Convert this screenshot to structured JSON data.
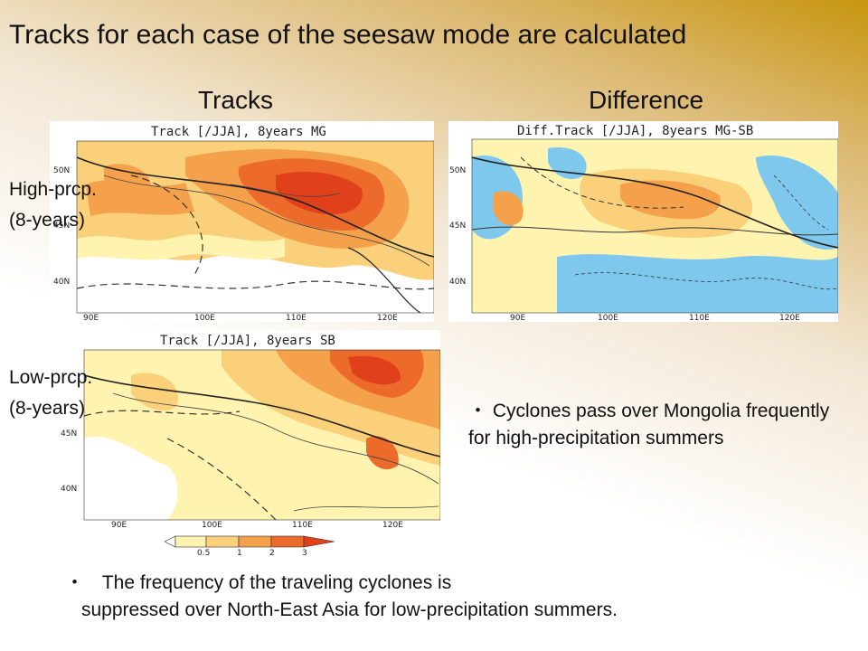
{
  "slide": {
    "title": "Tracks for each case of the seesaw mode are calculated",
    "headers": {
      "tracks": "Tracks",
      "difference": "Difference"
    },
    "rows": {
      "high": {
        "line1": "High-prcp.",
        "line2": "(8-years)"
      },
      "low": {
        "line1": "Low-prcp.",
        "line2": "(8-years)"
      }
    },
    "maps": {
      "mg": {
        "title": "Track [/JJA], 8years MG",
        "lon_ticks": [
          "90E",
          "100E",
          "110E",
          "120E"
        ],
        "lat_ticks": [
          "50N",
          "45N",
          "40N"
        ]
      },
      "sb": {
        "title": "Track [/JJA], 8years SB",
        "lon_ticks": [
          "90E",
          "100E",
          "110E",
          "120E"
        ],
        "lat_ticks": [
          "45N",
          "40N"
        ]
      },
      "diff": {
        "title": "Diff.Track [/JJA], 8years MG-SB",
        "lon_ticks": [
          "90E",
          "100E",
          "110E",
          "120E"
        ],
        "lat_ticks": [
          "50N",
          "45N",
          "40N"
        ]
      }
    },
    "colorbar": {
      "ticks": [
        "0.5",
        "1",
        "2",
        "3"
      ],
      "colors": [
        "#ffffff",
        "#fff3b0",
        "#fbd07a",
        "#f5a04a",
        "#ec6a2a",
        "#e0401a"
      ]
    },
    "bullets": {
      "diff_marker": "・",
      "diff_text": "Cyclones pass over Mongolia frequently for high-precipitation summers",
      "freq_marker": "・",
      "freq_line1": "The frequency of the traveling cyclones is",
      "freq_line2": "suppressed over North-East Asia for low-precipitation summers."
    },
    "colors": {
      "heat_high": "#e0401a",
      "heat_low": "#fff3b0",
      "diff_neg": "#7ec8ee"
    }
  }
}
